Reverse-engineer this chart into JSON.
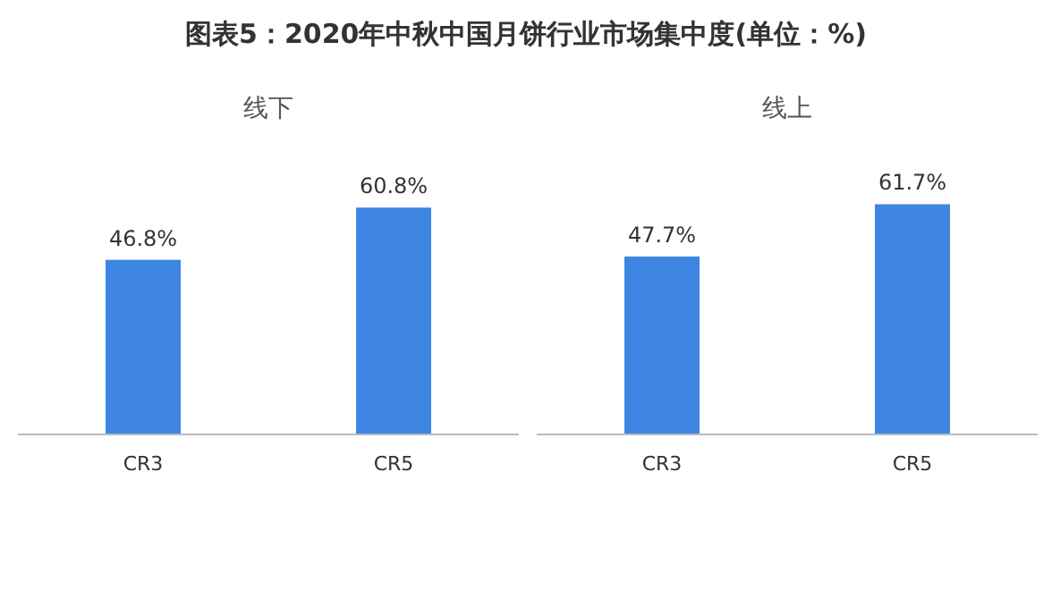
{
  "chart_data": [
    {
      "type": "other",
      "title": "图表5：2020年中秋中国月饼行业市场集中度(单位：%)"
    },
    {
      "type": "bar",
      "title": "线下",
      "categories": [
        "CR3",
        "CR5"
      ],
      "values": [
        46.8,
        60.8
      ],
      "value_labels": [
        "46.8%",
        "60.8%"
      ],
      "color": "#3f86e2"
    },
    {
      "type": "bar",
      "title": "线上",
      "categories": [
        "CR3",
        "CR5"
      ],
      "values": [
        47.7,
        61.7
      ],
      "value_labels": [
        "47.7%",
        "61.7%"
      ],
      "color": "#3f86e2"
    }
  ]
}
